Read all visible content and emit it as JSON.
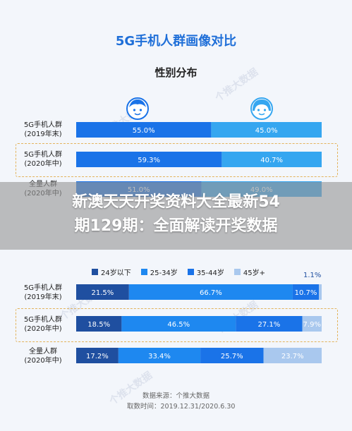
{
  "title": "5G手机人群画像对比",
  "gender_section": {
    "subtitle": "性别分布"
  },
  "age_legend": [
    "24岁以下",
    "25-34岁",
    "35-44岁",
    "45岁+"
  ],
  "age_note": "1.1%",
  "source_line": "数据来源：个推大数据",
  "period_line": "取数时间：2019.12.31/2020.6.30",
  "overlay_line1": "新澳天天开奖资料大全最新54",
  "overlay_line2": "期129期：全面解读开奖数据",
  "watermark": "个推大数据",
  "colors": {
    "male": "#1a73e8",
    "female": "#35a6f0",
    "age_0": "#1f4fa0",
    "age_1": "#1e88f0",
    "age_2": "#1a73e8",
    "age_3": "#a9c8ee",
    "highlight": "#e3b35c",
    "title": "#1f6fd8"
  },
  "chart_data": [
    {
      "type": "bar",
      "stacked": true,
      "orientation": "horizontal",
      "title": "性别分布",
      "categories": [
        "5G手机人群(2019年末)",
        "5G手机人群(2020年中)",
        "全量人群(2020年中)"
      ],
      "series": [
        {
          "values": [
            55.0,
            59.3,
            51.0
          ]
        },
        {
          "values": [
            45.0,
            40.7,
            49.0
          ]
        }
      ],
      "value_labels": [
        [
          "55.0%",
          "45.0%"
        ],
        [
          "59.3%",
          "40.7%"
        ],
        [
          "51.0%",
          "49.0%"
        ]
      ]
    },
    {
      "type": "bar",
      "stacked": true,
      "orientation": "horizontal",
      "categories": [
        "5G手机人群(2019年末)",
        "5G手机人群(2020年中)",
        "全量人群(2020年中)"
      ],
      "series": [
        {
          "name": "24岁以下",
          "values": [
            21.5,
            18.5,
            17.2
          ]
        },
        {
          "name": "25-34岁",
          "values": [
            66.7,
            46.5,
            33.4
          ]
        },
        {
          "name": "35-44岁",
          "values": [
            10.7,
            27.1,
            25.7
          ]
        },
        {
          "name": "45岁+",
          "values": [
            1.1,
            7.9,
            23.7
          ]
        }
      ],
      "value_labels": [
        [
          "21.5%",
          "66.7%",
          "10.7%",
          ""
        ],
        [
          "18.5%",
          "46.5%",
          "27.1%",
          "7.9%"
        ],
        [
          "17.2%",
          "33.4%",
          "25.7%",
          "23.7%"
        ]
      ]
    }
  ],
  "row_labels": [
    [
      "5G手机人群",
      "(2019年末)"
    ],
    [
      "5G手机人群",
      "(2020年中)"
    ],
    [
      "全量人群",
      "(2020年中)"
    ]
  ]
}
